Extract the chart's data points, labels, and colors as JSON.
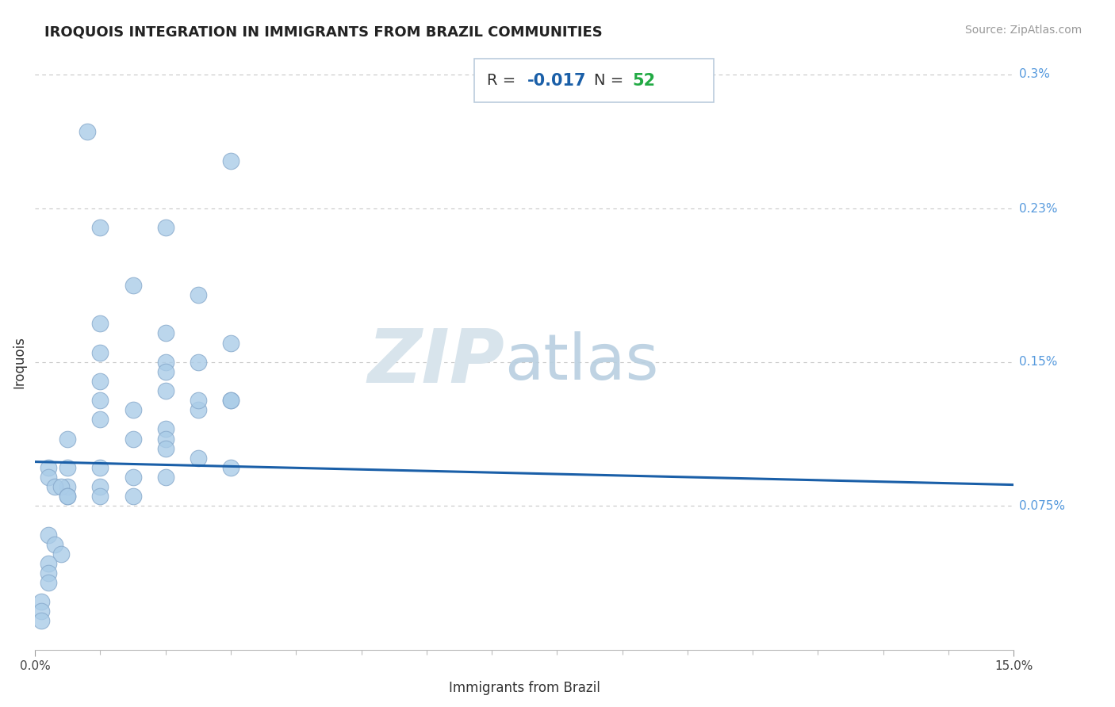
{
  "title": "IROQUOIS INTEGRATION IN IMMIGRANTS FROM BRAZIL COMMUNITIES",
  "source": "Source: ZipAtlas.com",
  "xlabel": "Immigrants from Brazil",
  "ylabel": "Iroquois",
  "R_text": "R = ",
  "R_val": "-0.017",
  "N_text": "  N = ",
  "N_val": "52",
  "xlim": [
    0.0,
    0.15
  ],
  "ylim": [
    0.0,
    0.003
  ],
  "ytick_vals": [
    0.00075,
    0.0015,
    0.0023,
    0.003
  ],
  "ytick_labels": [
    "0.075%",
    "0.15%",
    "0.23%",
    "0.3%"
  ],
  "scatter_color": "#aacce8",
  "scatter_edge_color": "#88aacc",
  "line_color": "#1a5fa8",
  "grid_color": "#c8c8c8",
  "title_color": "#222222",
  "label_color": "#5599dd",
  "R_color": "#1a5fa8",
  "N_color": "#22aa44",
  "box_edge_color": "#bbccdd",
  "watermark_color": "#ccdde8",
  "points_x": [
    0.008,
    0.03,
    0.01,
    0.02,
    0.015,
    0.025,
    0.01,
    0.02,
    0.03,
    0.025,
    0.01,
    0.015,
    0.01,
    0.02,
    0.02,
    0.01,
    0.02,
    0.02,
    0.03,
    0.025,
    0.01,
    0.02,
    0.025,
    0.03,
    0.005,
    0.015,
    0.02,
    0.025,
    0.03,
    0.005,
    0.01,
    0.015,
    0.02,
    0.005,
    0.01,
    0.01,
    0.015,
    0.002,
    0.002,
    0.003,
    0.004,
    0.005,
    0.005,
    0.002,
    0.003,
    0.004,
    0.002,
    0.002,
    0.002,
    0.001,
    0.001,
    0.001
  ],
  "points_y": [
    0.0027,
    0.00255,
    0.0022,
    0.0022,
    0.0019,
    0.00185,
    0.0017,
    0.00165,
    0.0016,
    0.0015,
    0.0013,
    0.00125,
    0.0012,
    0.00115,
    0.0011,
    0.00155,
    0.0015,
    0.00145,
    0.0013,
    0.00125,
    0.0014,
    0.00135,
    0.0013,
    0.0013,
    0.0011,
    0.0011,
    0.00105,
    0.001,
    0.00095,
    0.00095,
    0.00095,
    0.0009,
    0.0009,
    0.00085,
    0.00085,
    0.0008,
    0.0008,
    0.00095,
    0.0009,
    0.00085,
    0.00085,
    0.0008,
    0.0008,
    0.0006,
    0.00055,
    0.0005,
    0.00045,
    0.0004,
    0.00035,
    0.00025,
    0.0002,
    0.00015
  ],
  "reg_line_x": [
    0.0,
    0.15
  ],
  "reg_line_y_start": 0.00098,
  "reg_line_y_end": 0.00086
}
